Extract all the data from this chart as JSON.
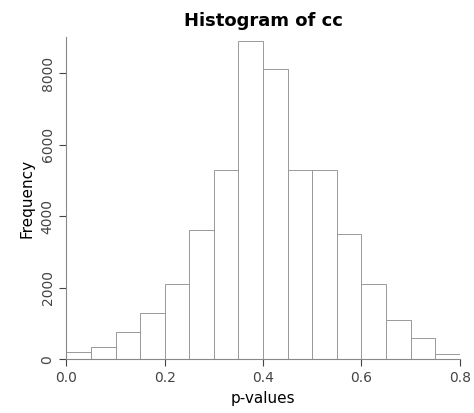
{
  "title": "Histogram of cc",
  "xlabel": "p-values",
  "ylabel": "Frequency",
  "bar_edges": [
    0.0,
    0.05,
    0.1,
    0.15,
    0.2,
    0.25,
    0.3,
    0.35,
    0.4,
    0.45,
    0.5,
    0.55,
    0.6,
    0.65,
    0.7,
    0.75,
    0.8
  ],
  "bar_heights": [
    200,
    350,
    750,
    1300,
    2100,
    3600,
    5300,
    8900,
    8100,
    5300,
    5300,
    3500,
    2100,
    1100,
    600,
    150
  ],
  "bar_facecolor": "#ffffff",
  "bar_edgecolor": "#999999",
  "background_color": "#ffffff",
  "xlim": [
    0.0,
    0.8
  ],
  "ylim": [
    0,
    9000
  ],
  "yticks": [
    0,
    2000,
    4000,
    6000,
    8000
  ],
  "xticks": [
    0.0,
    0.2,
    0.4,
    0.6,
    0.8
  ],
  "title_fontsize": 13,
  "label_fontsize": 11,
  "tick_fontsize": 10
}
